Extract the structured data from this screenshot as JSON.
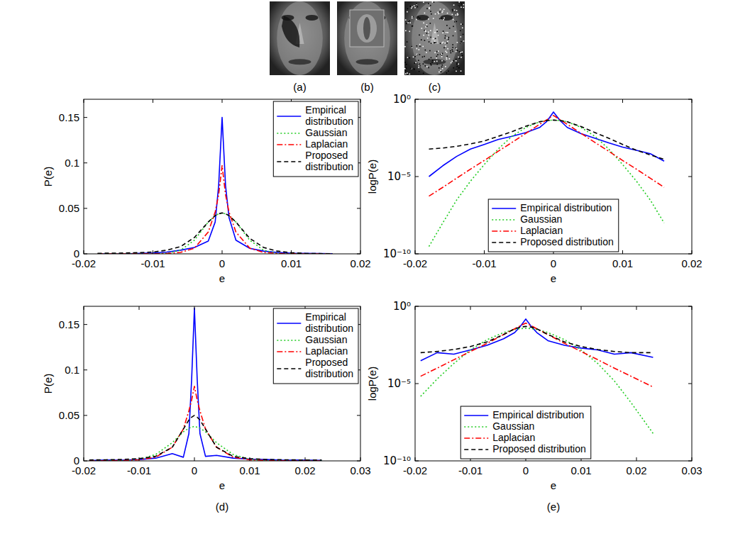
{
  "figure": {
    "image_labels": [
      "(a)",
      "(b)",
      "(c)"
    ],
    "panel_labels": [
      "(d)",
      "(e)"
    ]
  },
  "chart_data": [
    {
      "type": "line",
      "xlabel": "e",
      "ylabel": "P(e)",
      "xlim": [
        -0.02,
        0.02
      ],
      "xticks": [
        -0.02,
        -0.01,
        0,
        0.01,
        0.02
      ],
      "ylim": [
        0,
        0.17
      ],
      "yticks": [
        0,
        0.05,
        0.1,
        0.15
      ],
      "legend": "upper right",
      "x": [
        -0.018,
        -0.016,
        -0.014,
        -0.012,
        -0.01,
        -0.008,
        -0.006,
        -0.004,
        -0.002,
        -0.001,
        -0.0005,
        0,
        0.0005,
        0.001,
        0.002,
        0.004,
        0.006,
        0.008,
        0.01,
        0.012,
        0.014,
        0.016
      ],
      "series": [
        {
          "name": "Empirical distribution",
          "color": "#0000ff",
          "line_style": "solid",
          "values": [
            0,
            0,
            0,
            0.0005,
            0.001,
            0.002,
            0.004,
            0.007,
            0.014,
            0.035,
            0.075,
            0.15,
            0.075,
            0.04,
            0.015,
            0.006,
            0.003,
            0.0015,
            0.0008,
            0.0005,
            0.0003,
            0.0001
          ]
        },
        {
          "name": "Gaussian",
          "color": "#22cc22",
          "line_style": "dotted",
          "values": [
            0,
            0,
            0,
            0,
            0.0001,
            0.0006,
            0.004,
            0.015,
            0.035,
            0.042,
            0.044,
            0.045,
            0.044,
            0.042,
            0.035,
            0.015,
            0.004,
            0.0006,
            0.0001,
            0,
            0,
            0
          ]
        },
        {
          "name": "Laplacian",
          "color": "#ff0000",
          "line_style": "dashdot",
          "values": [
            0,
            0,
            0,
            0,
            0.0001,
            0.0004,
            0.0016,
            0.0062,
            0.024,
            0.046,
            0.065,
            0.097,
            0.065,
            0.046,
            0.024,
            0.0062,
            0.0016,
            0.0004,
            0.0001,
            0,
            0,
            0
          ]
        },
        {
          "name": "Proposed distribution",
          "color": "#000000",
          "line_style": "dashed",
          "values": [
            0.0006,
            0.0007,
            0.0009,
            0.0013,
            0.002,
            0.004,
            0.008,
            0.018,
            0.035,
            0.042,
            0.044,
            0.045,
            0.044,
            0.042,
            0.035,
            0.017,
            0.007,
            0.003,
            0.0012,
            0.0005,
            0.0003,
            0.0001
          ]
        }
      ]
    },
    {
      "type": "line",
      "xlabel": "e",
      "ylabel": "logP(e)",
      "log": "y",
      "xlim": [
        -0.02,
        0.02
      ],
      "xticks": [
        -0.02,
        -0.01,
        0,
        0.01,
        0.02
      ],
      "ylim": [
        1e-10,
        1
      ],
      "yticks": [
        {
          "value": 1e-10,
          "label": "10⁻¹⁰"
        },
        {
          "value": 1e-05,
          "label": "10⁻⁵"
        },
        {
          "value": 1,
          "label": "10⁰"
        }
      ],
      "legend": "bottom",
      "x": [
        -0.018,
        -0.016,
        -0.014,
        -0.012,
        -0.01,
        -0.008,
        -0.006,
        -0.004,
        -0.002,
        -0.001,
        0,
        0.001,
        0.002,
        0.004,
        0.006,
        0.008,
        0.01,
        0.012,
        0.014,
        0.016
      ],
      "series": [
        {
          "name": "Empirical distribution",
          "color": "#0000ff",
          "line_style": "solid",
          "values": [
            1e-05,
            5e-05,
            0.0002,
            0.0006,
            0.0012,
            0.0025,
            0.004,
            0.007,
            0.015,
            0.035,
            0.15,
            0.04,
            0.015,
            0.006,
            0.003,
            0.0015,
            0.0008,
            0.0005,
            0.0003,
            0.0001
          ]
        },
        {
          "name": "Gaussian",
          "color": "#22cc22",
          "line_style": "dotted",
          "values": [
            3e-10,
            1e-08,
            3e-07,
            5e-06,
            6e-05,
            0.0006,
            0.004,
            0.015,
            0.035,
            0.042,
            0.045,
            0.042,
            0.035,
            0.015,
            0.004,
            0.0006,
            6e-05,
            5e-06,
            3e-07,
            1e-08
          ]
        },
        {
          "name": "Laplacian",
          "color": "#ff0000",
          "line_style": "dashdot",
          "values": [
            5.4e-07,
            2e-06,
            7.8e-06,
            3e-05,
            0.00011,
            0.00043,
            0.0016,
            0.0062,
            0.024,
            0.046,
            0.09,
            0.046,
            0.024,
            0.0062,
            0.0016,
            0.00043,
            0.00011,
            3e-05,
            7.8e-06,
            2e-06
          ]
        },
        {
          "name": "Proposed distribution",
          "color": "#000000",
          "line_style": "dashed",
          "values": [
            0.0006,
            0.0007,
            0.0009,
            0.0013,
            0.002,
            0.004,
            0.008,
            0.018,
            0.035,
            0.042,
            0.045,
            0.042,
            0.035,
            0.017,
            0.007,
            0.003,
            0.0012,
            0.0005,
            0.00025,
            0.00013
          ]
        }
      ]
    },
    {
      "type": "line",
      "xlabel": "e",
      "ylabel": "P(e)",
      "xlim": [
        -0.02,
        0.03
      ],
      "xticks": [
        -0.02,
        -0.01,
        0,
        0.01,
        0.02,
        0.03
      ],
      "ylim": [
        0,
        0.17
      ],
      "yticks": [
        0,
        0.05,
        0.1,
        0.15
      ],
      "legend": "upper right",
      "x": [
        -0.019,
        -0.016,
        -0.013,
        -0.01,
        -0.007,
        -0.004,
        -0.002,
        -0.001,
        -0.0005,
        0,
        0.0005,
        0.001,
        0.002,
        0.004,
        0.007,
        0.01,
        0.013,
        0.016,
        0.019,
        0.023
      ],
      "series": [
        {
          "name": "Empirical distribution",
          "color": "#0000ff",
          "line_style": "solid",
          "values": [
            0.0003,
            0.001,
            0.0008,
            0.0015,
            0.003,
            0.008,
            0.004,
            0.03,
            0.09,
            0.168,
            0.09,
            0.03,
            0.005,
            0.006,
            0.003,
            0.002,
            0.0015,
            0.0008,
            0.001,
            0.0005
          ]
        },
        {
          "name": "Gaussian",
          "color": "#22cc22",
          "line_style": "dotted",
          "values": [
            0,
            0,
            0.0002,
            0.0015,
            0.007,
            0.02,
            0.032,
            0.036,
            0.037,
            0.038,
            0.037,
            0.036,
            0.032,
            0.02,
            0.007,
            0.0015,
            0.0002,
            0,
            0,
            0
          ]
        },
        {
          "name": "Laplacian",
          "color": "#ff0000",
          "line_style": "dashdot",
          "values": [
            0,
            0.0001,
            0.0004,
            0.0012,
            0.004,
            0.015,
            0.035,
            0.055,
            0.067,
            0.082,
            0.067,
            0.055,
            0.035,
            0.015,
            0.004,
            0.0012,
            0.0004,
            0.0001,
            0,
            0
          ]
        },
        {
          "name": "Proposed distribution",
          "color": "#000000",
          "line_style": "dashed",
          "values": [
            0.001,
            0.0012,
            0.0016,
            0.0025,
            0.005,
            0.015,
            0.035,
            0.045,
            0.048,
            0.05,
            0.048,
            0.045,
            0.035,
            0.015,
            0.005,
            0.0025,
            0.0016,
            0.0012,
            0.001,
            0.001
          ]
        }
      ]
    },
    {
      "type": "line",
      "xlabel": "e",
      "ylabel": "logP(e)",
      "log": "y",
      "xlim": [
        -0.02,
        0.03
      ],
      "xticks": [
        -0.02,
        -0.01,
        0,
        0.01,
        0.02,
        0.03
      ],
      "ylim": [
        1e-10,
        1
      ],
      "yticks": [
        {
          "value": 1e-10,
          "label": "10⁻¹⁰"
        },
        {
          "value": 1e-05,
          "label": "10⁻⁵"
        },
        {
          "value": 1,
          "label": "10⁰"
        }
      ],
      "legend": "bottom",
      "x": [
        -0.019,
        -0.016,
        -0.013,
        -0.01,
        -0.007,
        -0.004,
        -0.002,
        -0.001,
        0,
        0.001,
        0.002,
        0.004,
        0.007,
        0.01,
        0.013,
        0.016,
        0.019,
        0.023
      ],
      "series": [
        {
          "name": "Empirical distribution",
          "color": "#0000ff",
          "line_style": "solid",
          "values": [
            0.0003,
            0.001,
            0.0008,
            0.0015,
            0.003,
            0.008,
            0.02,
            0.05,
            0.15,
            0.05,
            0.02,
            0.006,
            0.003,
            0.002,
            0.0015,
            0.0008,
            0.001,
            0.0005
          ]
        },
        {
          "name": "Gaussian",
          "color": "#22cc22",
          "line_style": "dotted",
          "values": [
            1.5e-06,
            2e-05,
            0.0002,
            0.0015,
            0.007,
            0.02,
            0.032,
            0.036,
            0.038,
            0.036,
            0.032,
            0.02,
            0.007,
            0.0015,
            0.0002,
            1.5e-05,
            6e-07,
            6e-09
          ]
        },
        {
          "name": "Laplacian",
          "color": "#ff0000",
          "line_style": "dashdot",
          "values": [
            3e-05,
            0.0001,
            0.00035,
            0.0012,
            0.004,
            0.015,
            0.035,
            0.055,
            0.082,
            0.055,
            0.035,
            0.015,
            0.004,
            0.0012,
            0.00035,
            0.0001,
            3e-05,
            6e-06
          ]
        },
        {
          "name": "Proposed distribution",
          "color": "#000000",
          "line_style": "dashed",
          "values": [
            0.001,
            0.0012,
            0.0016,
            0.0025,
            0.005,
            0.015,
            0.035,
            0.045,
            0.05,
            0.045,
            0.035,
            0.015,
            0.005,
            0.0025,
            0.0016,
            0.0012,
            0.001,
            0.001
          ]
        }
      ]
    }
  ]
}
